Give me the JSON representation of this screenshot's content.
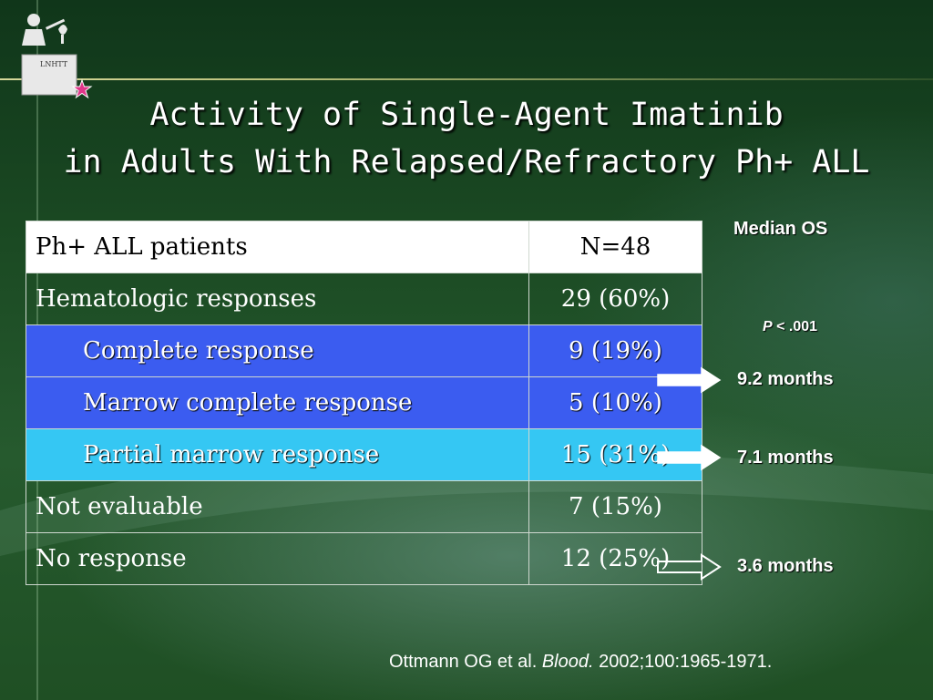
{
  "title": {
    "line1": "Activity of Single-Agent Imatinib",
    "line2": "in Adults With Relapsed/Refractory Ph+ ALL"
  },
  "logo": {
    "label": "LNHTT",
    "icon": "teacher-podium-icon"
  },
  "table": {
    "header": {
      "label": "Ph+ ALL patients",
      "value": "N=48"
    },
    "rows": [
      {
        "label": "Hematologic responses",
        "value": "29 (60%)"
      },
      {
        "label": "Complete response",
        "value": "9 (19%)"
      },
      {
        "label": "Marrow complete response",
        "value": "5 (10%)"
      },
      {
        "label": "Partial marrow response",
        "value": "15 (31%)"
      },
      {
        "label": "Not evaluable",
        "value": "7 (15%)"
      },
      {
        "label": "No response",
        "value": "12 (25%)"
      }
    ]
  },
  "survival": {
    "heading": "Median OS",
    "p_label": "P",
    "p_value": " < .001",
    "items": [
      {
        "value": "9.2 months"
      },
      {
        "value": "7.1 months"
      },
      {
        "value": "3.6 months"
      }
    ]
  },
  "citation": {
    "authors": "Ottmann OG et al. ",
    "journal": "Blood.",
    "details": " 2002;100:1965-1971."
  },
  "colors": {
    "row_blue": "#3b5cf0",
    "row_cyan": "#35c7f3",
    "background": "#1d4a1f"
  }
}
